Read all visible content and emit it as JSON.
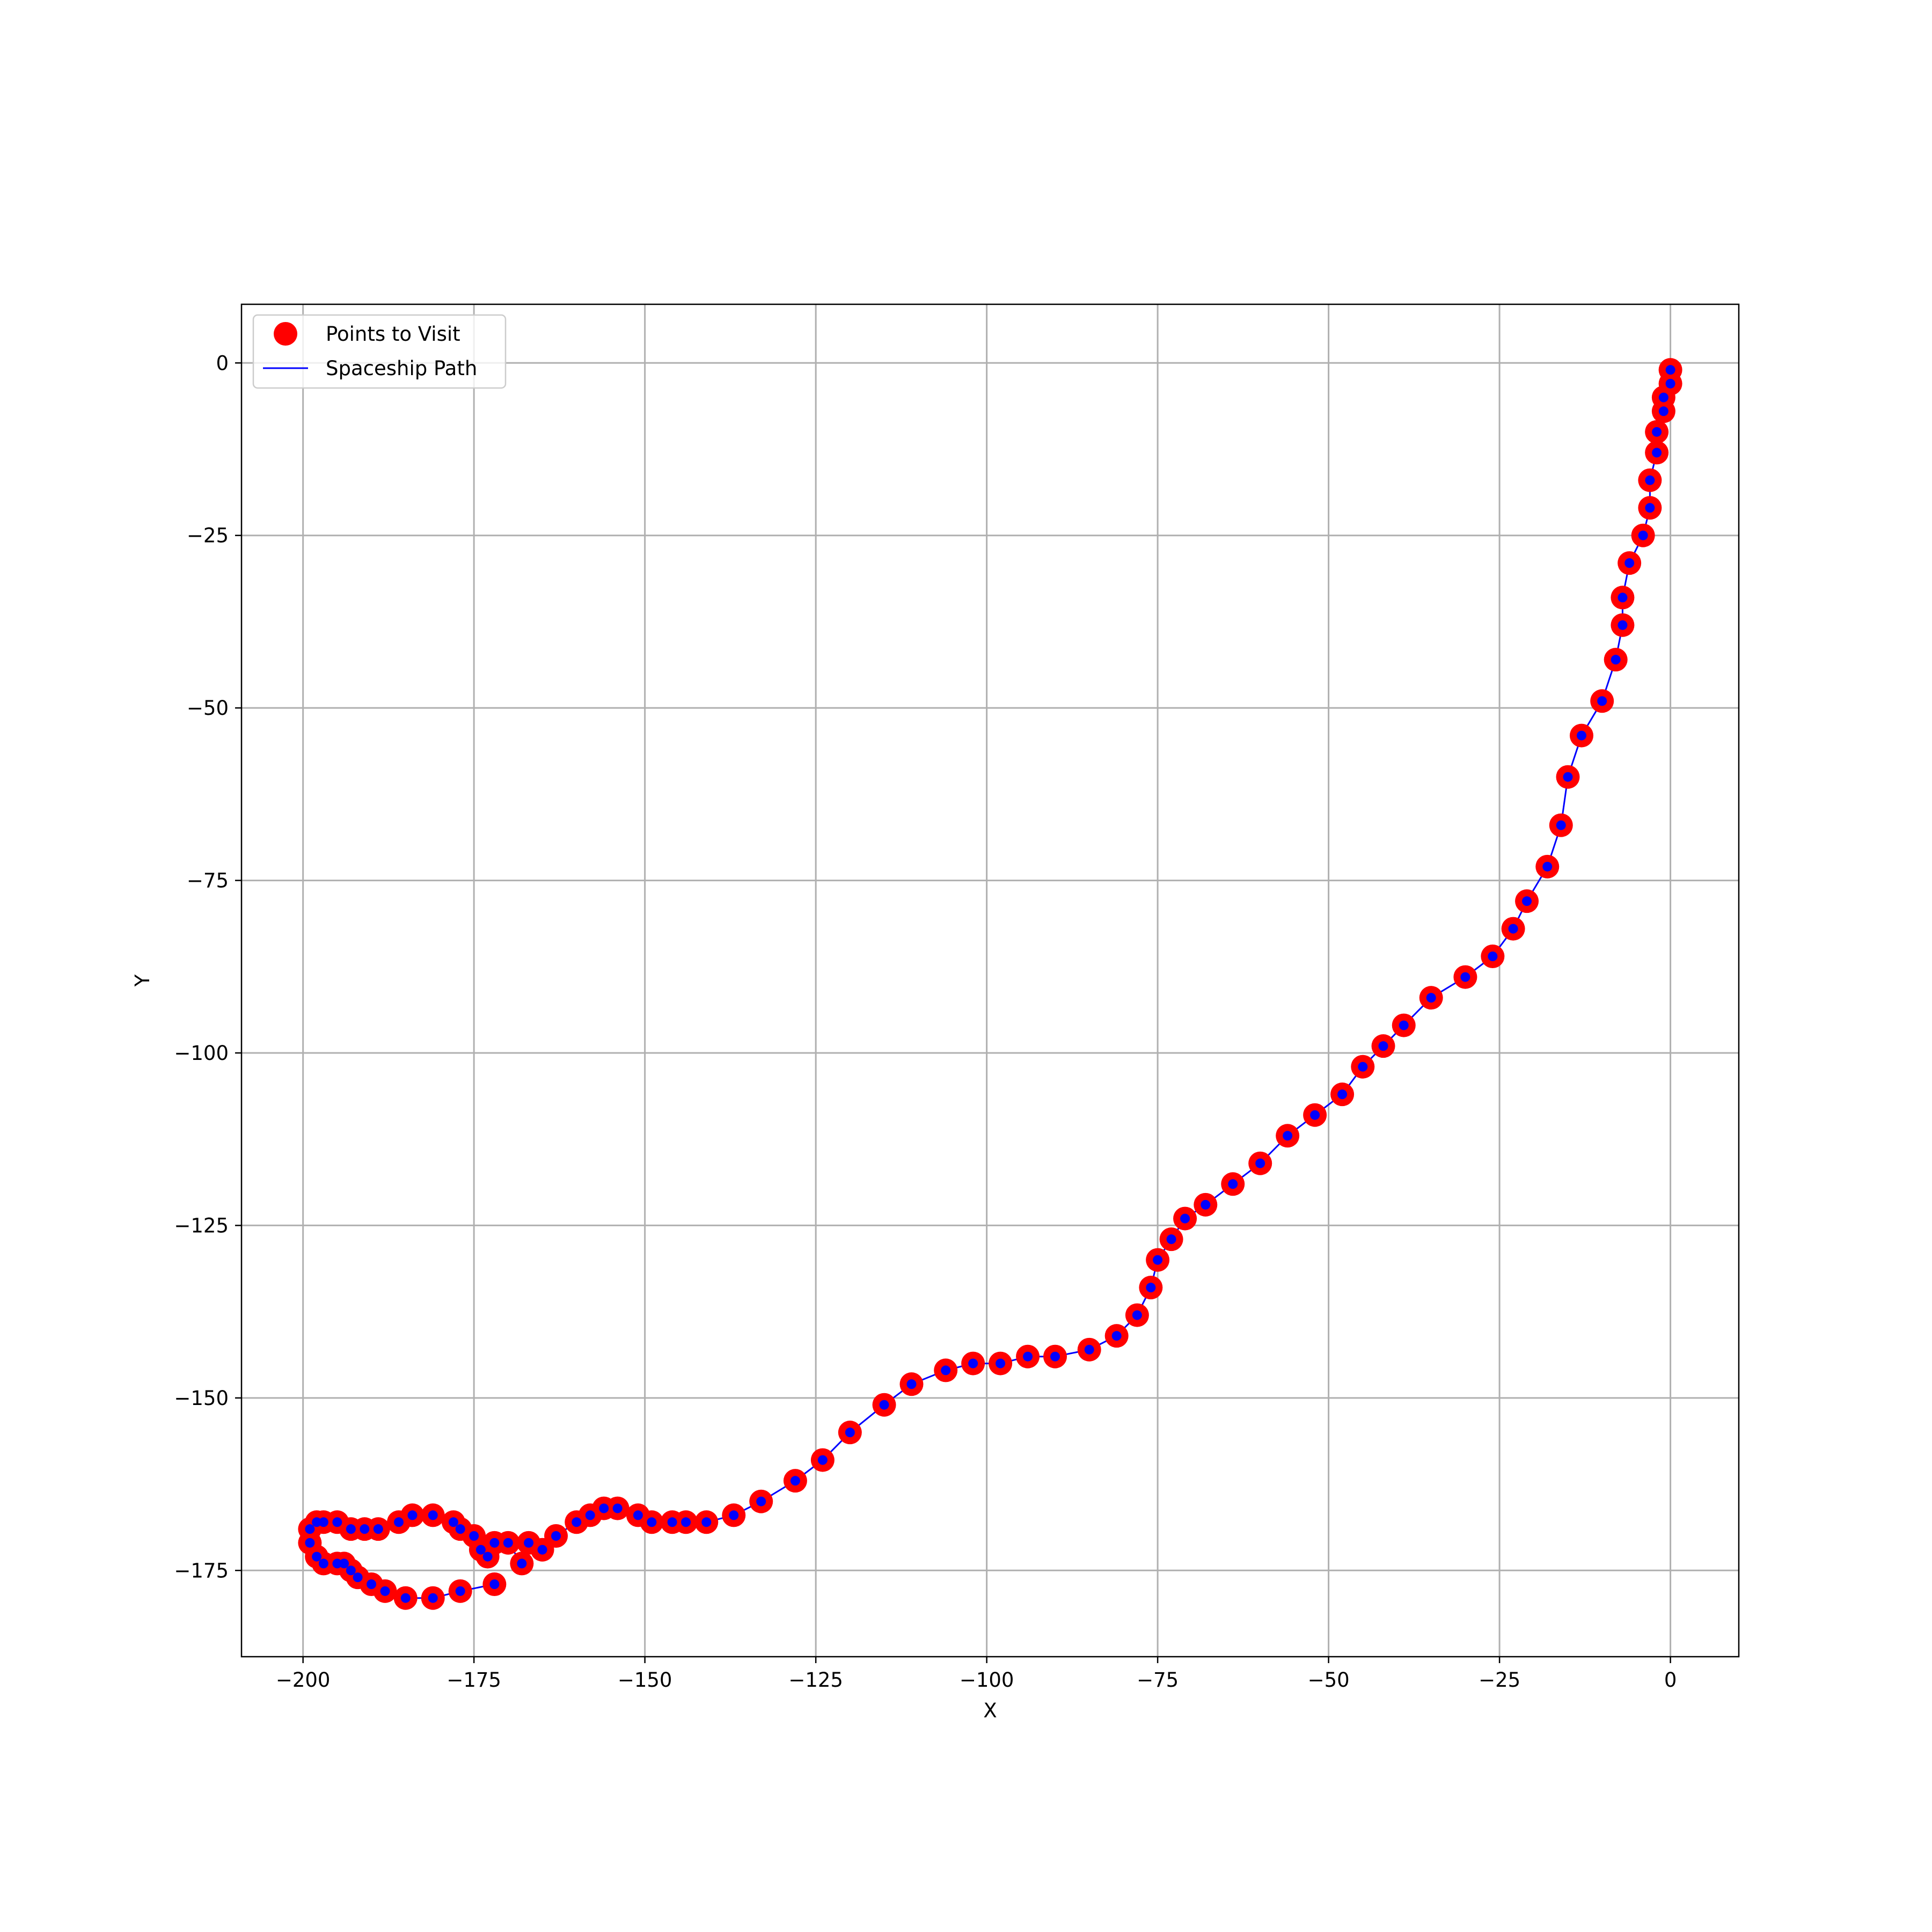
{
  "chart_data": {
    "type": "scatter",
    "xlabel": "X",
    "ylabel": "Y",
    "xlim": [
      -209,
      10
    ],
    "ylim": [
      -187.5,
      8.5
    ],
    "xticks": [
      -200,
      -175,
      -150,
      -125,
      -100,
      -75,
      -50,
      -25,
      0
    ],
    "yticks": [
      0,
      -25,
      -50,
      -75,
      -100,
      -125,
      -150,
      -175
    ],
    "xtick_labels": [
      "−200",
      "−175",
      "−150",
      "−125",
      "−100",
      "−75",
      "−50",
      "−25",
      "0"
    ],
    "ytick_labels": [
      "0",
      "−25",
      "−50",
      "−75",
      "−100",
      "−125",
      "−150",
      "−175"
    ],
    "grid": true,
    "legend": {
      "position": "upper-left",
      "entries": [
        "Points to Visit",
        "Spaceship Path"
      ]
    },
    "colors": {
      "points": "#ff0000",
      "path": "#0000ff"
    },
    "series": [
      {
        "name": "Points to Visit",
        "points": [
          [
            0,
            -1
          ],
          [
            0,
            -3
          ],
          [
            -1,
            -5
          ],
          [
            -1,
            -7
          ],
          [
            -2,
            -10
          ],
          [
            -2,
            -13
          ],
          [
            -3,
            -17
          ],
          [
            -3,
            -21
          ],
          [
            -4,
            -25
          ],
          [
            -6,
            -29
          ],
          [
            -7,
            -34
          ],
          [
            -7,
            -38
          ],
          [
            -8,
            -43
          ],
          [
            -10,
            -49
          ],
          [
            -13,
            -54
          ],
          [
            -15,
            -60
          ],
          [
            -16,
            -67
          ],
          [
            -18,
            -73
          ],
          [
            -21,
            -78
          ],
          [
            -23,
            -82
          ],
          [
            -26,
            -86
          ],
          [
            -30,
            -89
          ],
          [
            -35,
            -92
          ],
          [
            -39,
            -96
          ],
          [
            -42,
            -99
          ],
          [
            -45,
            -102
          ],
          [
            -48,
            -106
          ],
          [
            -52,
            -109
          ],
          [
            -56,
            -112
          ],
          [
            -60,
            -116
          ],
          [
            -64,
            -119
          ],
          [
            -68,
            -122
          ],
          [
            -71,
            -124
          ],
          [
            -73,
            -127
          ],
          [
            -75,
            -130
          ],
          [
            -76,
            -134
          ],
          [
            -78,
            -138
          ],
          [
            -81,
            -141
          ],
          [
            -85,
            -143
          ],
          [
            -90,
            -144
          ],
          [
            -94,
            -144
          ],
          [
            -98,
            -145
          ],
          [
            -102,
            -145
          ],
          [
            -106,
            -146
          ],
          [
            -111,
            -148
          ],
          [
            -115,
            -151
          ],
          [
            -120,
            -155
          ],
          [
            -124,
            -159
          ],
          [
            -128,
            -162
          ],
          [
            -133,
            -165
          ],
          [
            -137,
            -167
          ],
          [
            -141,
            -168
          ],
          [
            -144,
            -168
          ],
          [
            -146,
            -168
          ],
          [
            -149,
            -168
          ],
          [
            -151,
            -167
          ],
          [
            -154,
            -166
          ],
          [
            -156,
            -166
          ],
          [
            -158,
            -167
          ],
          [
            -160,
            -168
          ],
          [
            -163,
            -170
          ],
          [
            -165,
            -172
          ],
          [
            -167,
            -171
          ],
          [
            -168,
            -174
          ],
          [
            -170,
            -171
          ],
          [
            -172,
            -171
          ],
          [
            -173,
            -173
          ],
          [
            -174,
            -172
          ],
          [
            -175,
            -170
          ],
          [
            -177,
            -169
          ],
          [
            -178,
            -168
          ],
          [
            -181,
            -167
          ],
          [
            -184,
            -167
          ],
          [
            -186,
            -168
          ],
          [
            -189,
            -169
          ],
          [
            -191,
            -169
          ],
          [
            -193,
            -169
          ],
          [
            -195,
            -168
          ],
          [
            -197,
            -168
          ],
          [
            -198,
            -168
          ],
          [
            -199,
            -169
          ],
          [
            -199,
            -171
          ],
          [
            -198,
            -173
          ],
          [
            -197,
            -174
          ],
          [
            -195,
            -174
          ],
          [
            -194,
            -174
          ],
          [
            -193,
            -175
          ],
          [
            -192,
            -176
          ],
          [
            -190,
            -177
          ],
          [
            -188,
            -178
          ],
          [
            -185,
            -179
          ],
          [
            -181,
            -179
          ],
          [
            -177,
            -178
          ],
          [
            -172,
            -177
          ]
        ]
      },
      {
        "name": "Spaceship Path",
        "follows": "Points to Visit"
      }
    ]
  }
}
